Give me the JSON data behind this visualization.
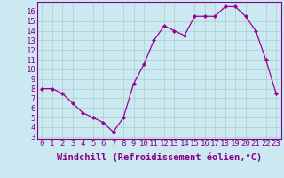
{
  "x": [
    0,
    1,
    2,
    3,
    4,
    5,
    6,
    7,
    8,
    9,
    10,
    11,
    12,
    13,
    14,
    15,
    16,
    17,
    18,
    19,
    20,
    21,
    22,
    23
  ],
  "y": [
    8,
    8,
    7.5,
    6.5,
    5.5,
    5,
    4.5,
    3.5,
    5,
    8.5,
    10.5,
    13,
    14.5,
    14,
    13.5,
    15.5,
    15.5,
    15.5,
    16.5,
    16.5,
    15.5,
    14,
    11,
    7.5
  ],
  "line_color": "#990099",
  "marker": "D",
  "marker_size": 2,
  "bg_color": "#cce8f0",
  "grid_color": "#aacccc",
  "xlabel": "Windchill (Refroidissement éolien,°C)",
  "xlim": [
    -0.5,
    23.5
  ],
  "ylim": [
    2.8,
    17
  ],
  "yticks": [
    3,
    4,
    5,
    6,
    7,
    8,
    9,
    10,
    11,
    12,
    13,
    14,
    15,
    16
  ],
  "xticks": [
    0,
    1,
    2,
    3,
    4,
    5,
    6,
    7,
    8,
    9,
    10,
    11,
    12,
    13,
    14,
    15,
    16,
    17,
    18,
    19,
    20,
    21,
    22,
    23
  ],
  "xtick_labels": [
    "0",
    "1",
    "2",
    "3",
    "4",
    "5",
    "6",
    "7",
    "8",
    "9",
    "10",
    "11",
    "12",
    "13",
    "14",
    "15",
    "16",
    "17",
    "18",
    "19",
    "20",
    "21",
    "22",
    "23"
  ],
  "border_color": "#880088",
  "tick_label_color": "#880088",
  "xlabel_color": "#880088",
  "xlabel_fontsize": 7.5,
  "tick_fontsize": 6.5
}
